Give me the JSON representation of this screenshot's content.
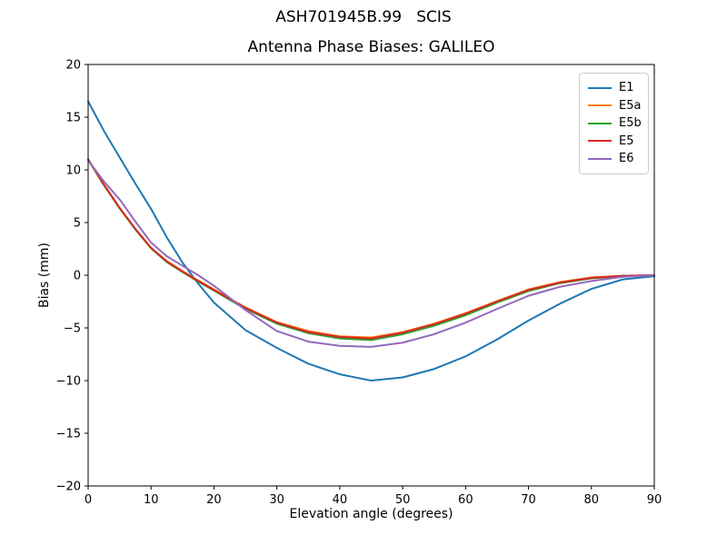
{
  "chart_data": {
    "type": "line",
    "suptitle": "ASH701945B.99   SCIS",
    "title": "Antenna Phase Biases: GALILEO",
    "xlabel": "Elevation angle (degrees)",
    "ylabel": "Bias (mm)",
    "xlim": [
      0,
      90
    ],
    "ylim": [
      -20,
      20
    ],
    "grid": false,
    "legend_position": "upper right",
    "xticks": [
      0,
      10,
      20,
      30,
      40,
      50,
      60,
      70,
      80,
      90
    ],
    "xtick_labels": [
      "0",
      "10",
      "20",
      "30",
      "40",
      "50",
      "60",
      "70",
      "80",
      "90"
    ],
    "yticks": [
      -20,
      -15,
      -10,
      -5,
      0,
      5,
      10,
      15,
      20
    ],
    "ytick_labels": [
      "−20",
      "−15",
      "−10",
      "−5",
      "0",
      "5",
      "10",
      "15",
      "20"
    ],
    "x": [
      0,
      2.5,
      5,
      7.5,
      10,
      12.5,
      15,
      17.5,
      20,
      25,
      30,
      35,
      40,
      45,
      50,
      55,
      60,
      65,
      70,
      75,
      80,
      85,
      90
    ],
    "series": [
      {
        "name": "E1",
        "color": "#1f77b4",
        "values": [
          16.5,
          13.7,
          11.2,
          8.7,
          6.3,
          3.6,
          1.2,
          -0.8,
          -2.6,
          -5.2,
          -6.9,
          -8.4,
          -9.4,
          -10.0,
          -9.7,
          -8.9,
          -7.7,
          -6.1,
          -4.3,
          -2.7,
          -1.3,
          -0.4,
          -0.1
        ]
      },
      {
        "name": "E5a",
        "color": "#ff7f0e",
        "values": [
          11.0,
          8.6,
          6.4,
          4.4,
          2.6,
          1.35,
          0.4,
          -0.5,
          -1.35,
          -3.05,
          -4.45,
          -5.3,
          -5.8,
          -5.9,
          -5.4,
          -4.6,
          -3.6,
          -2.45,
          -1.35,
          -0.65,
          -0.2,
          -0.05,
          0.0
        ]
      },
      {
        "name": "E5b",
        "color": "#2ca02c",
        "values": [
          10.95,
          8.55,
          6.35,
          4.35,
          2.55,
          1.25,
          0.3,
          -0.6,
          -1.45,
          -3.2,
          -4.6,
          -5.5,
          -6.0,
          -6.15,
          -5.6,
          -4.8,
          -3.8,
          -2.6,
          -1.5,
          -0.75,
          -0.3,
          -0.08,
          0.0
        ]
      },
      {
        "name": "E5",
        "color": "#d62728",
        "values": [
          11.0,
          8.6,
          6.4,
          4.4,
          2.6,
          1.3,
          0.35,
          -0.55,
          -1.4,
          -3.1,
          -4.5,
          -5.4,
          -5.85,
          -6.0,
          -5.45,
          -4.65,
          -3.65,
          -2.5,
          -1.4,
          -0.7,
          -0.25,
          -0.05,
          0.0
        ]
      },
      {
        "name": "E6",
        "color": "#9467bd",
        "values": [
          10.9,
          8.9,
          7.2,
          5.1,
          3.1,
          1.8,
          0.9,
          0.0,
          -1.0,
          -3.3,
          -5.3,
          -6.3,
          -6.7,
          -6.8,
          -6.4,
          -5.6,
          -4.5,
          -3.2,
          -1.95,
          -1.1,
          -0.55,
          -0.15,
          0.0
        ]
      }
    ]
  }
}
